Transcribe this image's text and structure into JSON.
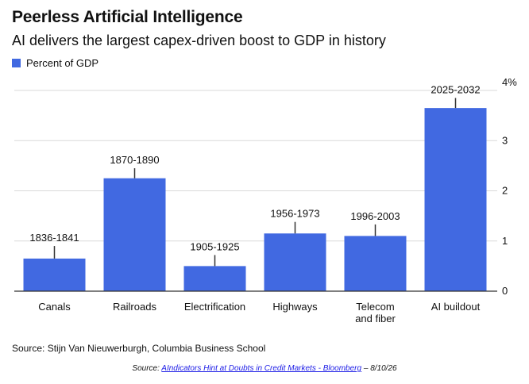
{
  "title": "Peerless Artificial Intelligence",
  "subtitle": "AI delivers the largest capex-driven boost to GDP in history",
  "legend": {
    "label": "Percent of GDP",
    "color": "#4169e1"
  },
  "source": "Source: Stijn Van Nieuwerburgh, Columbia Business School",
  "credit": {
    "prefix": "Source: ",
    "link_text": "AIndicators Hint at Doubts in Credit Markets - Bloomberg",
    "suffix": " – 8/10/26"
  },
  "chart_data": {
    "type": "bar",
    "categories": [
      "Canals",
      "Railroads",
      "Electrification",
      "Highways",
      "Telecom\nand fiber",
      "AI buildout"
    ],
    "periods": [
      "1836-1841",
      "1870-1890",
      "1905-1925",
      "1956-1973",
      "1996-2003",
      "2025-2032"
    ],
    "series": [
      {
        "name": "Percent of GDP",
        "values": [
          0.65,
          2.25,
          0.5,
          1.15,
          1.1,
          3.65
        ]
      }
    ],
    "error_tops": [
      0.9,
      2.45,
      0.72,
      1.38,
      1.33,
      3.85
    ],
    "yticks": [
      "0",
      "1",
      "2",
      "3",
      "4%"
    ],
    "ylim": [
      0,
      4
    ],
    "axis_side": "right",
    "grid": true,
    "color": "#4169e1"
  }
}
